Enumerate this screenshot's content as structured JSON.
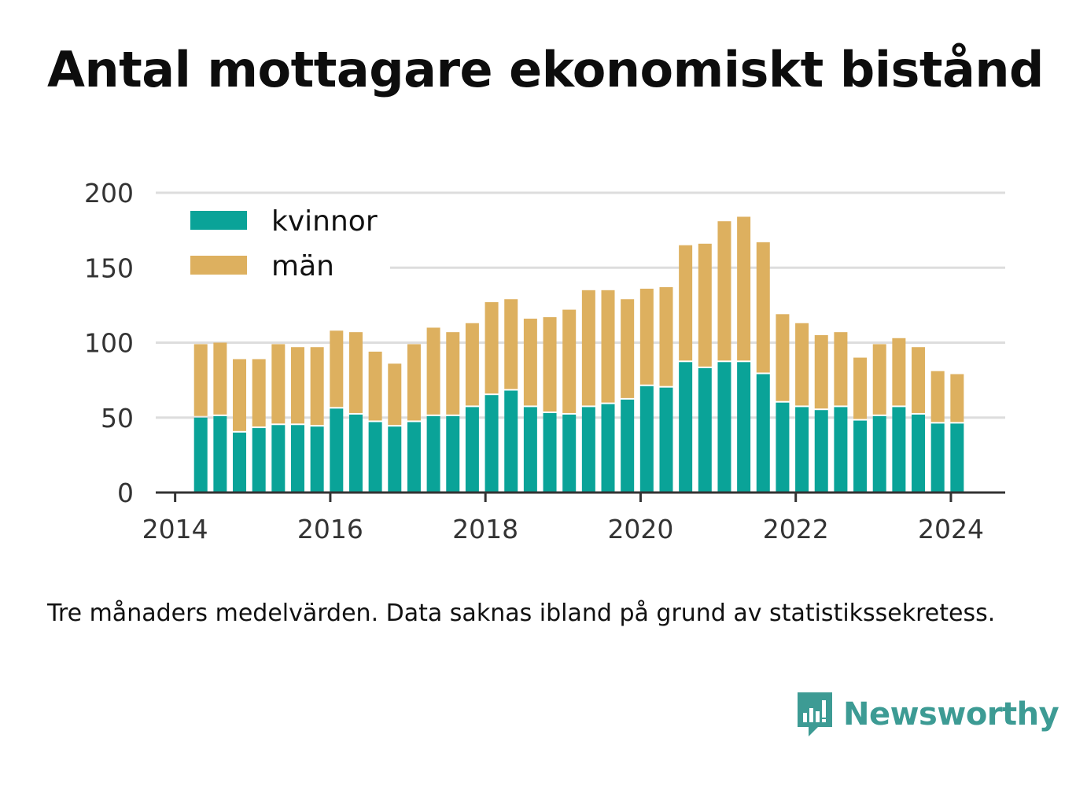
{
  "title": "Antal mottagare ekonomiskt bistånd",
  "note": "Tre månaders medelvärden. Data saknas ibland på grund av statistikssekretess.",
  "brand": "Newsworthy",
  "colors": {
    "kvinnor": "#0aa398",
    "man": "#ddb05f",
    "grid": "#dddddd",
    "axis": "#333333",
    "brand": "#3d9b94"
  },
  "chart_data": {
    "type": "bar",
    "stacked": true,
    "title": "Antal mottagare ekonomiskt bistånd",
    "xlabel": "",
    "ylabel": "",
    "ylim": [
      0,
      200
    ],
    "yticks": [
      0,
      50,
      100,
      150,
      200
    ],
    "xlim": [
      2013.75,
      2024.7
    ],
    "xticks": [
      "2014",
      "2016",
      "2018",
      "2020",
      "2022",
      "2024"
    ],
    "grid": true,
    "legend_position": "top-left",
    "x": [
      2014.33,
      2014.58,
      2014.83,
      2015.08,
      2015.33,
      2015.58,
      2015.83,
      2016.08,
      2016.33,
      2016.58,
      2016.83,
      2017.08,
      2017.33,
      2017.58,
      2017.83,
      2018.08,
      2018.33,
      2018.58,
      2018.83,
      2019.08,
      2019.33,
      2019.58,
      2019.83,
      2020.08,
      2020.33,
      2020.58,
      2020.83,
      2021.08,
      2021.33,
      2021.58,
      2021.83,
      2022.08,
      2022.33,
      2022.58,
      2022.83,
      2023.08,
      2023.33,
      2023.58,
      2023.83,
      2024.08
    ],
    "series": [
      {
        "name": "kvinnor",
        "values": [
          50,
          51,
          40,
          43,
          45,
          45,
          44,
          56,
          52,
          47,
          44,
          47,
          51,
          51,
          57,
          65,
          68,
          57,
          53,
          52,
          57,
          59,
          62,
          71,
          70,
          87,
          83,
          87,
          87,
          79,
          60,
          57,
          55,
          57,
          48,
          51,
          57,
          52,
          46,
          46
        ]
      },
      {
        "name": "män",
        "values": [
          49,
          49,
          49,
          46,
          54,
          52,
          53,
          52,
          55,
          47,
          42,
          52,
          59,
          56,
          56,
          62,
          61,
          59,
          64,
          70,
          78,
          76,
          67,
          65,
          67,
          78,
          83,
          94,
          97,
          88,
          59,
          56,
          50,
          50,
          42,
          48,
          46,
          45,
          35,
          33
        ]
      }
    ]
  }
}
